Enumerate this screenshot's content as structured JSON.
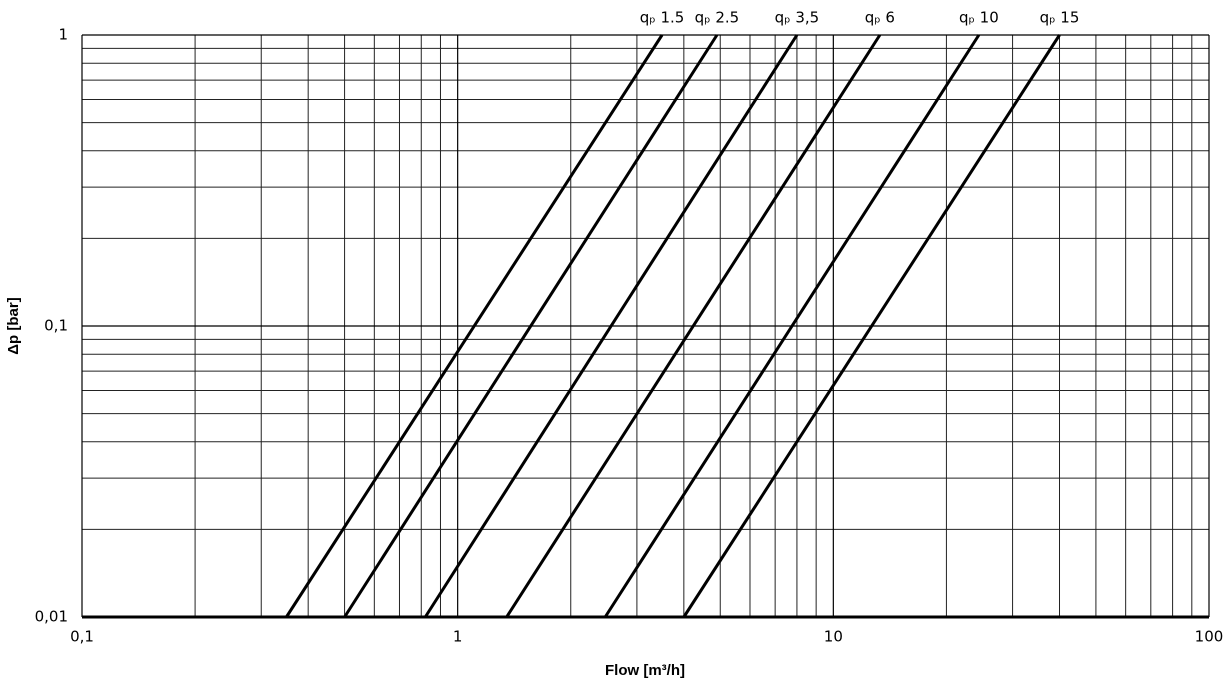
{
  "chart_data": {
    "type": "line",
    "x_label": "Flow [m³/h]",
    "y_label": "Δp [bar]",
    "log_x": true,
    "log_y": true,
    "grid": true,
    "xlim": [
      0.1,
      100
    ],
    "ylim": [
      0.01,
      1
    ],
    "xticks": [
      {
        "value": 0.1,
        "label": "0,1"
      },
      1,
      10,
      100
    ],
    "yticks": [
      {
        "value": 0.01,
        "label": "0,01"
      },
      {
        "value": 0.1,
        "label": "0,1"
      },
      1
    ],
    "xminorticks": [
      0.2,
      0.3,
      0.4,
      0.5,
      0.6,
      0.7,
      0.8,
      0.9,
      2,
      3,
      4,
      5,
      6,
      7,
      8,
      9,
      20,
      30,
      40,
      50,
      60,
      70,
      80,
      90
    ],
    "yminorticks": [
      0.02,
      0.03,
      0.04,
      0.05,
      0.06,
      0.07,
      0.08,
      0.09,
      0.2,
      0.3,
      0.4,
      0.5,
      0.6,
      0.7,
      0.8,
      0.9
    ],
    "series": [
      {
        "name": "qₚ 1.5",
        "color": "#000000",
        "x": [
          0.35,
          3.5
        ],
        "values": [
          0.01,
          1
        ]
      },
      {
        "name": "qₚ 2.5",
        "color": "#000000",
        "x": [
          0.5,
          4.9
        ],
        "values": [
          0.01,
          1
        ]
      },
      {
        "name": "qₚ 3,5",
        "color": "#000000",
        "x": [
          0.82,
          8
        ],
        "values": [
          0.01,
          1
        ]
      },
      {
        "name": "qₚ 6",
        "color": "#000000",
        "x": [
          1.35,
          13.3
        ],
        "values": [
          0.01,
          1
        ]
      },
      {
        "name": "qₚ 10",
        "color": "#000000",
        "x": [
          2.47,
          24.4
        ],
        "values": [
          0.01,
          1
        ]
      },
      {
        "name": "qₚ 15",
        "color": "#000000",
        "x": [
          4,
          40
        ],
        "values": [
          0.01,
          1
        ]
      }
    ]
  }
}
